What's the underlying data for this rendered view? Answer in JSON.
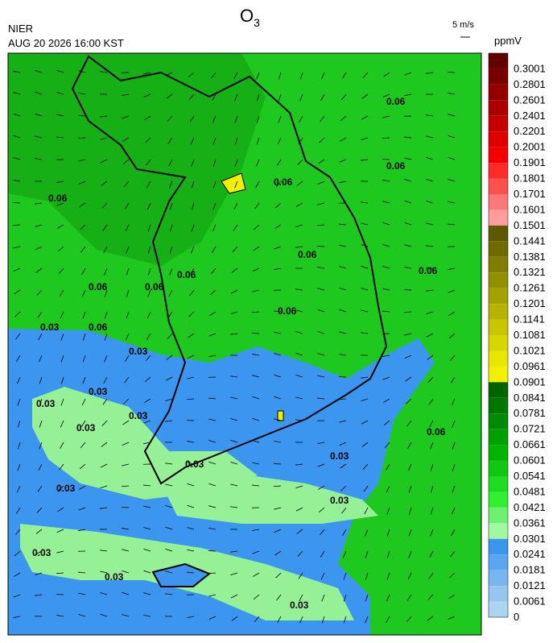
{
  "header": {
    "title": "O",
    "title_sub": "3",
    "agency": "NIER",
    "datetime": "AUG 20 2026 16:00 KST",
    "wind_scale": "5 m/s",
    "unit": "ppmV"
  },
  "colorbar": {
    "levels": [
      0.3001,
      0.2801,
      0.2601,
      0.2401,
      0.2201,
      0.2001,
      0.1901,
      0.1801,
      0.1701,
      0.1601,
      0.1501,
      0.1441,
      0.1381,
      0.1321,
      0.1261,
      0.1201,
      0.1141,
      0.1081,
      0.1021,
      0.0961,
      0.0901,
      0.0841,
      0.0781,
      0.0721,
      0.0661,
      0.0601,
      0.0541,
      0.0481,
      0.0421,
      0.0361,
      0.0301,
      0.0241,
      0.0181,
      0.0121,
      0.0061,
      0
    ],
    "colors": [
      "#640000",
      "#7a0000",
      "#920000",
      "#aa0000",
      "#c40000",
      "#de0000",
      "#f40000",
      "#ff2a2a",
      "#ff5050",
      "#ff7878",
      "#ff9c9c",
      "#5c5a00",
      "#6e6c00",
      "#807e00",
      "#929000",
      "#a4a200",
      "#b6b400",
      "#c8c600",
      "#d8d600",
      "#e8e600",
      "#f0f000",
      "#006400",
      "#007800",
      "#008c00",
      "#00a000",
      "#00b400",
      "#10c810",
      "#20dc20",
      "#30f030",
      "#70f070",
      "#a0f8a0",
      "#3c96f0",
      "#5aa6f0",
      "#78b6f0",
      "#96c6f0",
      "#aad4f0"
    ]
  },
  "contour_labels": [
    "0.06",
    "0.06",
    "0.06",
    "0.06",
    "0.06",
    "0.06",
    "0.06",
    "0.06",
    "0.06",
    "0.06",
    "0.06",
    "0.06",
    "0.03",
    "0.03",
    "0.03",
    "0.03",
    "0.03",
    "0.03",
    "0.03",
    "0.03",
    "0.03",
    "0.03",
    "0.03",
    "0.03",
    "0.03"
  ]
}
